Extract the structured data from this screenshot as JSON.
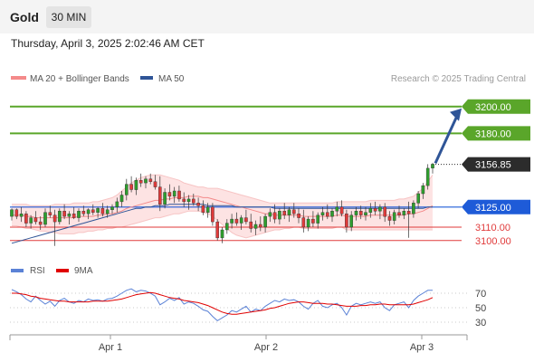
{
  "header": {
    "instrument": "Gold",
    "timeframe": "30 MIN",
    "timestamp": "Thursday, April 3, 2025 2:02:46 AM CET"
  },
  "legend": {
    "items": [
      {
        "label": "MA 20 + Bollinger Bands",
        "color": "#f48a8a"
      },
      {
        "label": "MA 50",
        "color": "#2f5597"
      }
    ],
    "source": "Research © 2025 Trading Central"
  },
  "levels": [
    {
      "value": 3200.0,
      "label": "3200.00",
      "kind": "resistance",
      "color": "#5aa62a"
    },
    {
      "value": 3180.0,
      "label": "3180.00",
      "kind": "resistance",
      "color": "#5aa62a"
    },
    {
      "value": 3156.85,
      "label": "3156.85",
      "kind": "last-price",
      "color": "#2c2c2c"
    },
    {
      "value": 3125.0,
      "label": "3125.00",
      "kind": "pivot",
      "color": "#1e5bd8"
    },
    {
      "value": 3110.0,
      "label": "3110.00",
      "kind": "support",
      "color": "#e03a3a"
    },
    {
      "value": 3100.0,
      "label": "3100.00",
      "kind": "support",
      "color": "#e03a3a"
    }
  ],
  "rsi": {
    "legend": [
      {
        "label": "RSI",
        "color": "#5b82d6"
      },
      {
        "label": "9MA",
        "color": "#e00000"
      }
    ],
    "ticks": [
      "70",
      "50",
      "30"
    ]
  },
  "xaxis": {
    "labels": [
      "Apr 1",
      "Apr 2",
      "Apr 3"
    ]
  },
  "chart_data": {
    "type": "candlestick",
    "bullish_color": "#2e9e2e",
    "bearish_color": "#e03a3a",
    "candles": [
      [
        3118,
        3124,
        3115,
        3123
      ],
      [
        3123,
        3124,
        3116,
        3118
      ],
      [
        3118,
        3125,
        3114,
        3120
      ],
      [
        3120,
        3122,
        3110,
        3113
      ],
      [
        3113,
        3119,
        3109,
        3117
      ],
      [
        3117,
        3122,
        3112,
        3114
      ],
      [
        3114,
        3118,
        3108,
        3112
      ],
      [
        3112,
        3124,
        3110,
        3121
      ],
      [
        3121,
        3126,
        3117,
        3119
      ],
      [
        3119,
        3123,
        3096,
        3114
      ],
      [
        3114,
        3124,
        3112,
        3122
      ],
      [
        3122,
        3127,
        3116,
        3118
      ],
      [
        3118,
        3122,
        3112,
        3120
      ],
      [
        3120,
        3125,
        3116,
        3117
      ],
      [
        3117,
        3124,
        3114,
        3122
      ],
      [
        3122,
        3126,
        3118,
        3120
      ],
      [
        3120,
        3124,
        3116,
        3123
      ],
      [
        3123,
        3127,
        3119,
        3121
      ],
      [
        3121,
        3125,
        3117,
        3124
      ],
      [
        3124,
        3128,
        3118,
        3120
      ],
      [
        3120,
        3126,
        3117,
        3123
      ],
      [
        3123,
        3127,
        3120,
        3125
      ],
      [
        3125,
        3132,
        3121,
        3129
      ],
      [
        3129,
        3137,
        3125,
        3134
      ],
      [
        3134,
        3146,
        3130,
        3142
      ],
      [
        3142,
        3148,
        3136,
        3138
      ],
      [
        3138,
        3147,
        3134,
        3145
      ],
      [
        3145,
        3150,
        3140,
        3143
      ],
      [
        3143,
        3148,
        3139,
        3146
      ],
      [
        3146,
        3150,
        3142,
        3144
      ],
      [
        3144,
        3149,
        3138,
        3140
      ],
      [
        3140,
        3148,
        3122,
        3127
      ],
      [
        3127,
        3139,
        3124,
        3136
      ],
      [
        3136,
        3142,
        3130,
        3133
      ],
      [
        3133,
        3140,
        3128,
        3137
      ],
      [
        3137,
        3141,
        3129,
        3131
      ],
      [
        3131,
        3136,
        3125,
        3129
      ],
      [
        3129,
        3134,
        3123,
        3131
      ],
      [
        3131,
        3135,
        3126,
        3128
      ],
      [
        3128,
        3132,
        3122,
        3126
      ],
      [
        3126,
        3130,
        3119,
        3121
      ],
      [
        3121,
        3128,
        3117,
        3125
      ],
      [
        3125,
        3128,
        3111,
        3114
      ],
      [
        3114,
        3116,
        3100,
        3102
      ],
      [
        3102,
        3110,
        3098,
        3108
      ],
      [
        3108,
        3116,
        3105,
        3113
      ],
      [
        3113,
        3120,
        3109,
        3116
      ],
      [
        3116,
        3121,
        3111,
        3113
      ],
      [
        3113,
        3119,
        3108,
        3117
      ],
      [
        3117,
        3123,
        3112,
        3114
      ],
      [
        3114,
        3120,
        3106,
        3109
      ],
      [
        3109,
        3115,
        3104,
        3112
      ],
      [
        3112,
        3118,
        3107,
        3110
      ],
      [
        3110,
        3120,
        3106,
        3118
      ],
      [
        3118,
        3124,
        3114,
        3121
      ],
      [
        3121,
        3127,
        3113,
        3116
      ],
      [
        3116,
        3124,
        3112,
        3122
      ],
      [
        3122,
        3128,
        3116,
        3119
      ],
      [
        3119,
        3125,
        3114,
        3123
      ],
      [
        3123,
        3128,
        3117,
        3120
      ],
      [
        3120,
        3124,
        3113,
        3117
      ],
      [
        3117,
        3123,
        3106,
        3110
      ],
      [
        3110,
        3118,
        3107,
        3116
      ],
      [
        3116,
        3122,
        3110,
        3113
      ],
      [
        3113,
        3121,
        3109,
        3119
      ],
      [
        3119,
        3125,
        3115,
        3121
      ],
      [
        3121,
        3127,
        3116,
        3118
      ],
      [
        3118,
        3124,
        3114,
        3122
      ],
      [
        3122,
        3129,
        3118,
        3125
      ],
      [
        3125,
        3130,
        3118,
        3120
      ],
      [
        3120,
        3123,
        3106,
        3110
      ],
      [
        3110,
        3122,
        3107,
        3119
      ],
      [
        3119,
        3125,
        3115,
        3122
      ],
      [
        3122,
        3126,
        3116,
        3119
      ],
      [
        3119,
        3125,
        3115,
        3121
      ],
      [
        3121,
        3128,
        3117,
        3124
      ],
      [
        3124,
        3129,
        3119,
        3122
      ],
      [
        3122,
        3127,
        3116,
        3125
      ],
      [
        3125,
        3128,
        3114,
        3118
      ],
      [
        3118,
        3122,
        3111,
        3115
      ],
      [
        3115,
        3123,
        3112,
        3121
      ],
      [
        3121,
        3126,
        3117,
        3119
      ],
      [
        3119,
        3124,
        3116,
        3122
      ],
      [
        3122,
        3129,
        3102,
        3120
      ],
      [
        3120,
        3130,
        3117,
        3128
      ],
      [
        3128,
        3137,
        3124,
        3135
      ],
      [
        3135,
        3143,
        3131,
        3141
      ],
      [
        3141,
        3157,
        3138,
        3154
      ],
      [
        3154,
        3158,
        3150,
        3157
      ]
    ],
    "ma20": [
      3119,
      3119,
      3119,
      3118,
      3118,
      3117,
      3117,
      3117,
      3117,
      3117,
      3117,
      3117,
      3117,
      3117,
      3118,
      3118,
      3118,
      3118,
      3119,
      3119,
      3120,
      3120,
      3121,
      3122,
      3124,
      3125,
      3126,
      3127,
      3128,
      3129,
      3130,
      3130,
      3131,
      3131,
      3132,
      3132,
      3132,
      3133,
      3133,
      3133,
      3132,
      3132,
      3131,
      3130,
      3129,
      3128,
      3127,
      3126,
      3125,
      3124,
      3123,
      3122,
      3121,
      3120,
      3120,
      3119,
      3119,
      3119,
      3119,
      3119,
      3119,
      3118,
      3118,
      3118,
      3118,
      3118,
      3118,
      3118,
      3119,
      3119,
      3118,
      3118,
      3118,
      3118,
      3118,
      3119,
      3119,
      3119,
      3119,
      3119,
      3119,
      3119,
      3119,
      3120,
      3120,
      3121,
      3122,
      3124,
      3126
    ],
    "bb_upper": [
      3127,
      3127,
      3127,
      3127,
      3126,
      3126,
      3126,
      3126,
      3126,
      3127,
      3127,
      3127,
      3127,
      3128,
      3128,
      3128,
      3128,
      3129,
      3129,
      3130,
      3131,
      3132,
      3134,
      3137,
      3140,
      3143,
      3145,
      3147,
      3148,
      3149,
      3149,
      3149,
      3148,
      3147,
      3146,
      3145,
      3143,
      3142,
      3141,
      3140,
      3140,
      3139,
      3139,
      3139,
      3138,
      3137,
      3136,
      3135,
      3134,
      3133,
      3132,
      3131,
      3130,
      3129,
      3128,
      3128,
      3128,
      3128,
      3128,
      3128,
      3128,
      3128,
      3128,
      3128,
      3128,
      3128,
      3128,
      3128,
      3129,
      3129,
      3129,
      3129,
      3129,
      3129,
      3129,
      3130,
      3130,
      3130,
      3130,
      3130,
      3130,
      3131,
      3131,
      3132,
      3133,
      3136,
      3139,
      3144,
      3149
    ],
    "bb_lower": [
      3111,
      3111,
      3110,
      3109,
      3109,
      3108,
      3107,
      3107,
      3106,
      3106,
      3105,
      3105,
      3105,
      3105,
      3106,
      3106,
      3107,
      3107,
      3108,
      3108,
      3109,
      3109,
      3110,
      3110,
      3111,
      3112,
      3113,
      3114,
      3115,
      3116,
      3117,
      3117,
      3118,
      3119,
      3120,
      3120,
      3121,
      3122,
      3122,
      3122,
      3121,
      3120,
      3118,
      3115,
      3112,
      3109,
      3106,
      3104,
      3103,
      3102,
      3103,
      3104,
      3105,
      3106,
      3107,
      3108,
      3108,
      3109,
      3109,
      3110,
      3110,
      3109,
      3109,
      3109,
      3109,
      3109,
      3109,
      3109,
      3110,
      3110,
      3108,
      3108,
      3108,
      3108,
      3108,
      3108,
      3108,
      3108,
      3108,
      3108,
      3108,
      3108,
      3108,
      3108,
      3108,
      3108,
      3108,
      3108,
      3108
    ],
    "ma50": [
      3098,
      3099,
      3100,
      3101,
      3102,
      3103,
      3104,
      3105,
      3106,
      3107,
      3108,
      3109,
      3110,
      3111,
      3112,
      3113,
      3114,
      3115,
      3116,
      3117,
      3118,
      3119,
      3120,
      3121,
      3122,
      3123,
      3124,
      3124,
      3125,
      3125,
      3126,
      3126,
      3126,
      3127,
      3127,
      3127,
      3127,
      3127,
      3127,
      3127,
      3127,
      3126,
      3126,
      3126,
      3126,
      3126,
      3126,
      3125,
      3125,
      3125,
      3125,
      3125,
      3125,
      3125,
      3125,
      3124,
      3124,
      3124,
      3124,
      3124,
      3124,
      3124,
      3124,
      3124,
      3124,
      3124,
      3124,
      3124,
      3124,
      3124,
      3124,
      3124,
      3124,
      3124,
      3124,
      3124,
      3124,
      3124,
      3124,
      3124,
      3124,
      3124,
      3124,
      3124,
      3124,
      3124,
      3124,
      3125,
      3125
    ],
    "rsi": [
      75,
      72,
      68,
      62,
      58,
      66,
      60,
      55,
      59,
      52,
      60,
      63,
      58,
      56,
      60,
      58,
      62,
      60,
      61,
      59,
      62,
      63,
      66,
      70,
      74,
      76,
      72,
      74,
      73,
      70,
      66,
      54,
      58,
      63,
      60,
      64,
      55,
      58,
      56,
      52,
      47,
      45,
      38,
      32,
      36,
      40,
      46,
      44,
      48,
      52,
      44,
      48,
      46,
      52,
      56,
      60,
      58,
      62,
      60,
      61,
      58,
      52,
      48,
      56,
      60,
      52,
      50,
      54,
      56,
      50,
      40,
      52,
      56,
      54,
      56,
      58,
      56,
      58,
      50,
      46,
      54,
      56,
      58,
      50,
      60,
      66,
      70,
      74,
      74
    ],
    "rsi_ma": [
      70,
      70,
      69,
      68,
      66,
      65,
      63,
      62,
      61,
      60,
      59,
      59,
      58,
      58,
      58,
      58,
      58,
      59,
      59,
      59,
      59,
      60,
      61,
      62,
      64,
      66,
      68,
      69,
      70,
      71,
      70,
      68,
      66,
      64,
      63,
      62,
      60,
      59,
      58,
      57,
      55,
      53,
      50,
      47,
      44,
      42,
      41,
      41,
      42,
      43,
      44,
      45,
      46,
      47,
      49,
      50,
      52,
      54,
      56,
      57,
      58,
      58,
      57,
      56,
      56,
      56,
      55,
      55,
      54,
      53,
      52,
      52,
      52,
      53,
      53,
      54,
      54,
      55,
      55,
      54,
      54,
      54,
      54,
      54,
      55,
      57,
      59,
      61,
      64
    ],
    "rsi_ref_levels": [
      70,
      50,
      30
    ],
    "price_range": [
      3085,
      3212
    ],
    "rsi_range": [
      20,
      85
    ],
    "projection": {
      "from": 3157,
      "to": 3200
    }
  }
}
